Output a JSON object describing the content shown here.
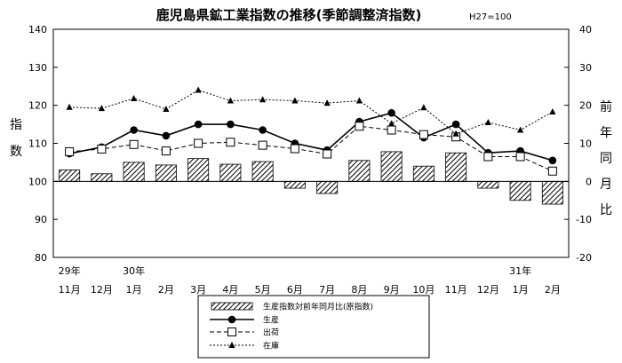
{
  "chart_data": {
    "type": "bar+line",
    "title": "鹿児島県鉱工業指数の推移(季節調整済指数)",
    "title_note": "H27=100",
    "ylabel_left": "指数",
    "ylabel_right": "前年同月比",
    "ylim_left": [
      80,
      140
    ],
    "yticks_left": [
      80,
      90,
      100,
      110,
      120,
      130,
      140
    ],
    "ylim_right": [
      -20,
      40
    ],
    "yticks_right": [
      -20,
      -10,
      0,
      10,
      20,
      30,
      40
    ],
    "grid": false,
    "categories": [
      "11月",
      "12月",
      "1月",
      "2月",
      "3月",
      "4月",
      "5月",
      "6月",
      "7月",
      "8月",
      "9月",
      "10月",
      "11月",
      "12月",
      "1月",
      "2月"
    ],
    "year_labels": [
      {
        "index": 0,
        "label": "29年"
      },
      {
        "index": 2,
        "label": "30年"
      },
      {
        "index": 14,
        "label": "31年"
      }
    ],
    "series": [
      {
        "name": "生産指数対前年同月比(原指数)",
        "kind": "bar",
        "axis": "right",
        "pattern": "hatched",
        "values": [
          3,
          2,
          5,
          4.3,
          6,
          4.5,
          5.2,
          -1.8,
          -3.2,
          5.5,
          7.8,
          4,
          7.5,
          -1.8,
          -5,
          -6
        ]
      },
      {
        "name": "生産",
        "kind": "line",
        "axis": "left",
        "line_style": "solid",
        "marker": "filled-circle",
        "values": [
          107.3,
          109,
          113.5,
          112,
          115,
          115,
          113.5,
          110,
          108.2,
          115.7,
          118,
          111.5,
          115,
          107.5,
          108,
          105.5
        ]
      },
      {
        "name": "出荷",
        "kind": "line",
        "axis": "left",
        "line_style": "dashed",
        "marker": "open-square",
        "values": [
          107.8,
          108.5,
          109.7,
          108,
          110,
          110.3,
          109.5,
          108.6,
          107.2,
          114.5,
          113.5,
          112.3,
          111.7,
          106.5,
          106.5,
          102.7
        ]
      },
      {
        "name": "在庫",
        "kind": "line",
        "axis": "right",
        "line_style": "dotted",
        "marker": "filled-triangle",
        "values": [
          19.5,
          19.2,
          21.8,
          19,
          24,
          21.2,
          21.5,
          21.2,
          20.6,
          21.2,
          15.2,
          19.4,
          12.5,
          15.5,
          13.5,
          18.3
        ]
      }
    ]
  }
}
